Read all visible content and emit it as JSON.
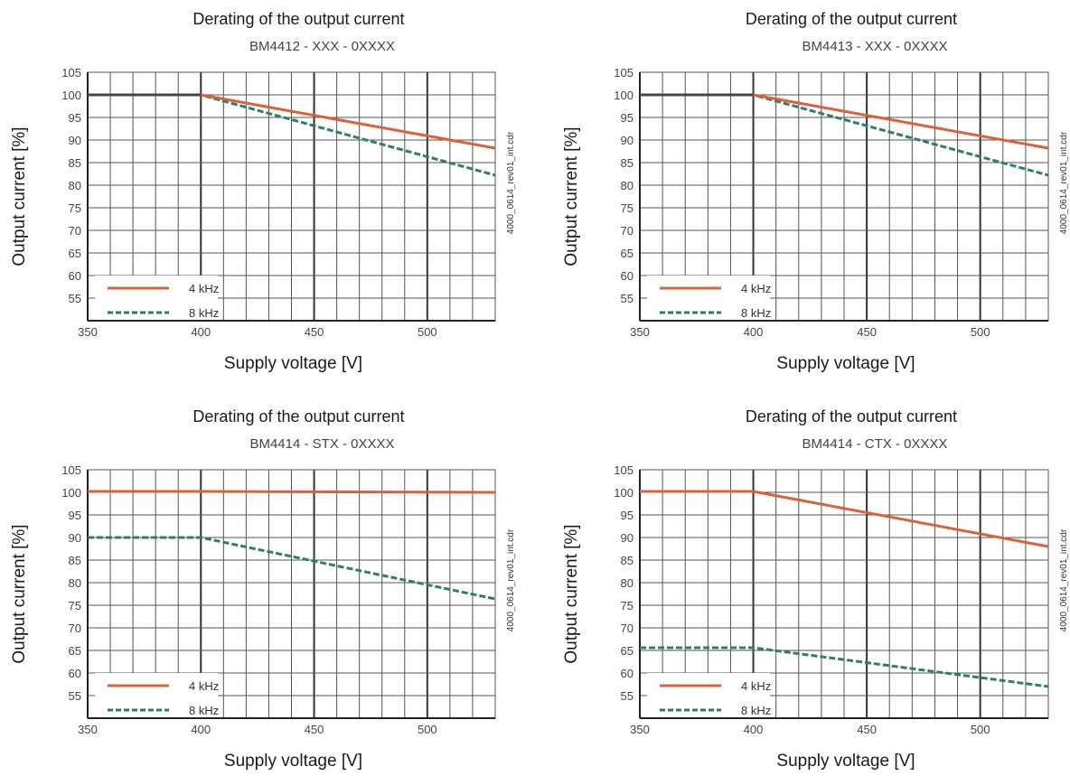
{
  "chart_data": [
    {
      "type": "line",
      "title": "Derating of the output current",
      "subtitle": "BM4412 - XXX - 0XXXX",
      "xlabel": "Supply voltage [V]",
      "ylabel": "Output current [%]",
      "side_note": "4000_0614_rev01_int.cdr",
      "xlim": [
        350,
        530
      ],
      "ylim": [
        50,
        105
      ],
      "x_ticks": [
        350,
        400,
        450,
        500
      ],
      "y_ticks": [
        55,
        60,
        65,
        70,
        75,
        80,
        85,
        90,
        95,
        100,
        105
      ],
      "grid": true,
      "legend_position": "bottom-left",
      "series": [
        {
          "name": "4 kHz",
          "color": "#d9623b",
          "dash": "solid",
          "points": [
            [
              350,
              100
            ],
            [
              400,
              100
            ],
            [
              530,
              88.2
            ]
          ]
        },
        {
          "name": "8 kHz",
          "color": "#2e7d6e",
          "dash": "dashed",
          "points": [
            [
              350,
              100
            ],
            [
              400,
              100
            ],
            [
              530,
              82.2
            ]
          ]
        }
      ]
    },
    {
      "type": "line",
      "title": "Derating of the output current",
      "subtitle": "BM4413 - XXX - 0XXXX",
      "xlabel": "Supply voltage [V]",
      "ylabel": "Output current [%]",
      "side_note": "4000_0614_rev01_int.cdr",
      "xlim": [
        350,
        530
      ],
      "ylim": [
        50,
        105
      ],
      "x_ticks": [
        350,
        400,
        450,
        500
      ],
      "y_ticks": [
        55,
        60,
        65,
        70,
        75,
        80,
        85,
        90,
        95,
        100,
        105
      ],
      "grid": true,
      "legend_position": "bottom-left",
      "series": [
        {
          "name": "4 kHz",
          "color": "#d9623b",
          "dash": "solid",
          "points": [
            [
              350,
              100
            ],
            [
              400,
              100
            ],
            [
              530,
              88.2
            ]
          ]
        },
        {
          "name": "8 kHz",
          "color": "#2e7d6e",
          "dash": "dashed",
          "points": [
            [
              350,
              100
            ],
            [
              400,
              100
            ],
            [
              530,
              82.2
            ]
          ]
        }
      ]
    },
    {
      "type": "line",
      "title": "Derating of the output current",
      "subtitle": "BM4414 - STX - 0XXXX",
      "xlabel": "Supply voltage [V]",
      "ylabel": "Output current [%]",
      "side_note": "4000_0614_rev01_int.cdr",
      "xlim": [
        350,
        530
      ],
      "ylim": [
        50,
        105
      ],
      "x_ticks": [
        350,
        400,
        450,
        500
      ],
      "y_ticks": [
        55,
        60,
        65,
        70,
        75,
        80,
        85,
        90,
        95,
        100,
        105
      ],
      "grid": true,
      "legend_position": "bottom-left",
      "series": [
        {
          "name": "4 kHz",
          "color": "#d9623b",
          "dash": "solid",
          "points": [
            [
              350,
              100.2
            ],
            [
              400,
              100.2
            ],
            [
              530,
              100
            ]
          ]
        },
        {
          "name": "8 kHz",
          "color": "#2e7d6e",
          "dash": "dashed",
          "points": [
            [
              350,
              90
            ],
            [
              400,
              90
            ],
            [
              530,
              76.4
            ]
          ]
        }
      ]
    },
    {
      "type": "line",
      "title": "Derating of the output current",
      "subtitle": "BM4414 - CTX - 0XXXX",
      "xlabel": "Supply voltage [V]",
      "ylabel": "Output current [%]",
      "side_note": "4000_0614_rev01_int.cdr",
      "xlim": [
        350,
        530
      ],
      "ylim": [
        50,
        105
      ],
      "x_ticks": [
        350,
        400,
        450,
        500
      ],
      "y_ticks": [
        55,
        60,
        65,
        70,
        75,
        80,
        85,
        90,
        95,
        100,
        105
      ],
      "grid": true,
      "legend_position": "bottom-left",
      "series": [
        {
          "name": "4 kHz",
          "color": "#d9623b",
          "dash": "solid",
          "points": [
            [
              350,
              100.2
            ],
            [
              400,
              100.2
            ],
            [
              530,
              88
            ]
          ]
        },
        {
          "name": "8 kHz",
          "color": "#2e7d6e",
          "dash": "dashed",
          "points": [
            [
              350,
              65.6
            ],
            [
              400,
              65.6
            ],
            [
              530,
              57
            ]
          ]
        }
      ]
    }
  ]
}
